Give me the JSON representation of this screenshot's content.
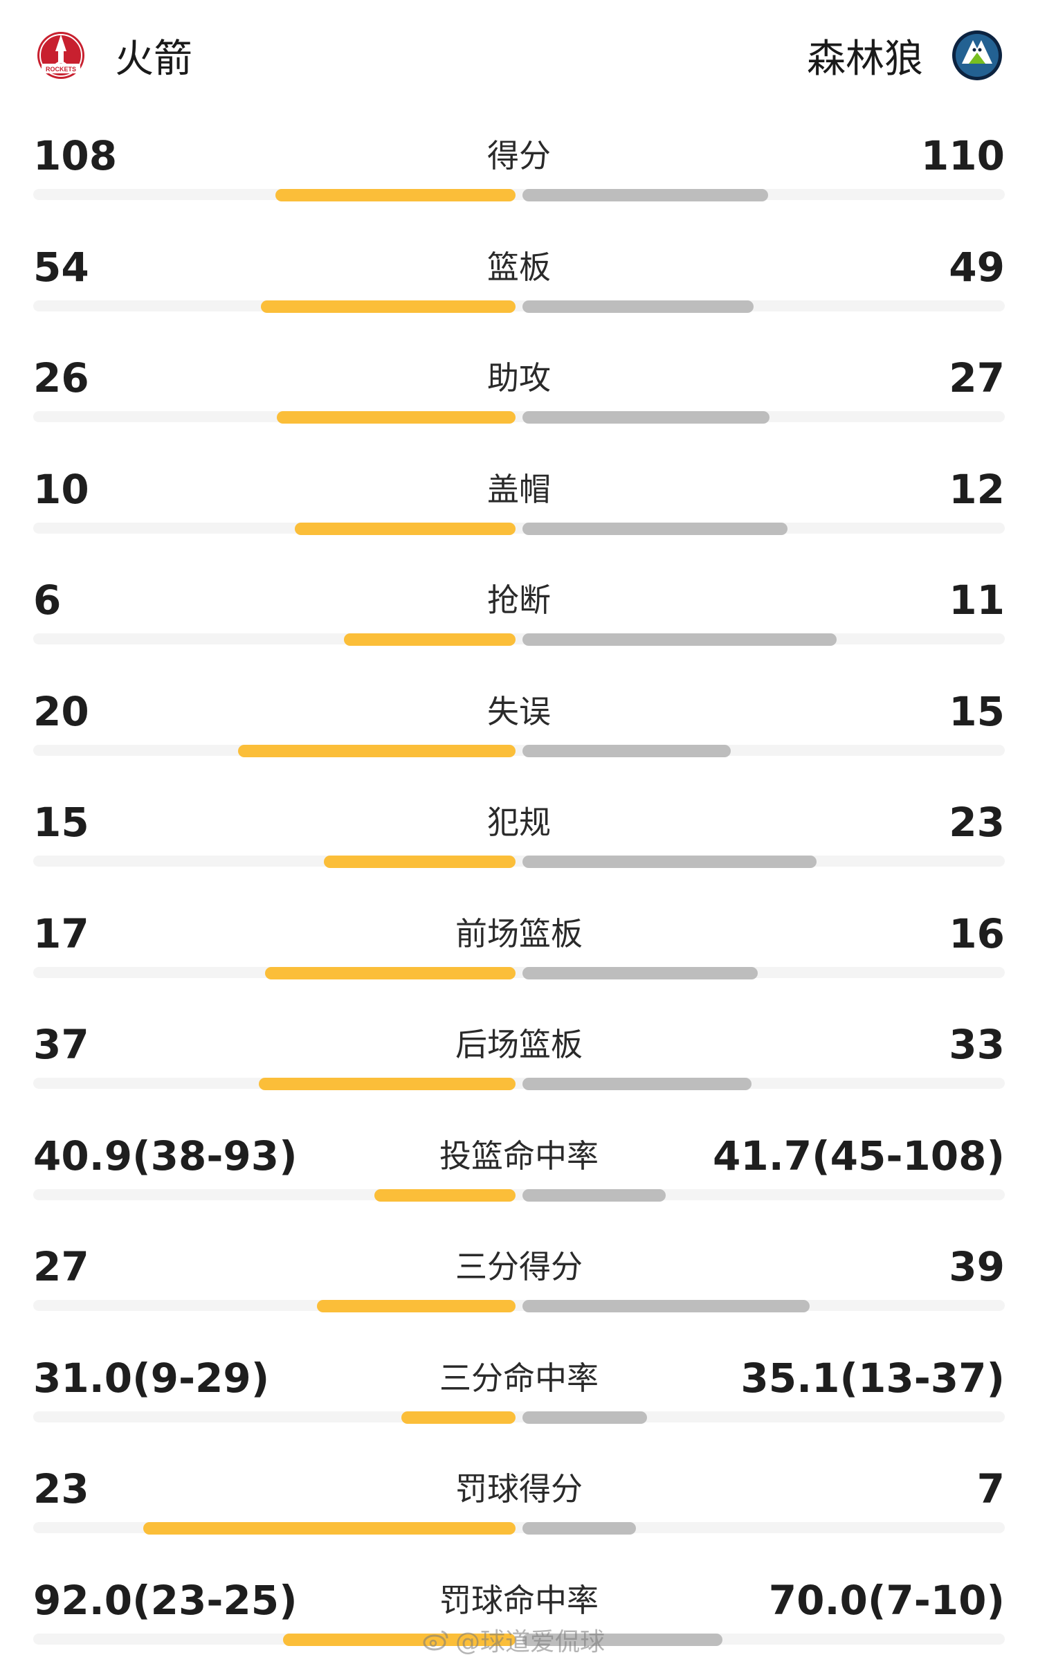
{
  "header": {
    "home_team": "火箭",
    "away_team": "森林狼",
    "home_logo_text": "ROCKETS"
  },
  "colors": {
    "home_bar": "#fbbe39",
    "away_bar": "#bdbdbd",
    "track": "#f4f4f4"
  },
  "stats": [
    {
      "label": "得分",
      "home": "108",
      "away": "110",
      "home_share": 0.495,
      "away_share": 0.505
    },
    {
      "label": "篮板",
      "home": "54",
      "away": "49",
      "home_share": 0.524,
      "away_share": 0.476
    },
    {
      "label": "助攻",
      "home": "26",
      "away": "27",
      "home_share": 0.491,
      "away_share": 0.509
    },
    {
      "label": "盖帽",
      "home": "10",
      "away": "12",
      "home_share": 0.455,
      "away_share": 0.545
    },
    {
      "label": "抢断",
      "home": "6",
      "away": "11",
      "home_share": 0.353,
      "away_share": 0.647
    },
    {
      "label": "失误",
      "home": "20",
      "away": "15",
      "home_share": 0.571,
      "away_share": 0.429
    },
    {
      "label": "犯规",
      "home": "15",
      "away": "23",
      "home_share": 0.395,
      "away_share": 0.605
    },
    {
      "label": "前场篮板",
      "home": "17",
      "away": "16",
      "home_share": 0.515,
      "away_share": 0.485
    },
    {
      "label": "后场篮板",
      "home": "37",
      "away": "33",
      "home_share": 0.529,
      "away_share": 0.471
    },
    {
      "label": "投篮命中率",
      "home": "40.9(38-93)",
      "away": "41.7(45-108)",
      "home_share": 0.29,
      "away_share": 0.295
    },
    {
      "label": "三分得分",
      "home": "27",
      "away": "39",
      "home_share": 0.409,
      "away_share": 0.591
    },
    {
      "label": "三分命中率",
      "home": "31.0(9-29)",
      "away": "35.1(13-37)",
      "home_share": 0.235,
      "away_share": 0.257
    },
    {
      "label": "罚球得分",
      "home": "23",
      "away": "7",
      "home_share": 0.767,
      "away_share": 0.233
    },
    {
      "label": "罚球命中率",
      "home": "92.0(23-25)",
      "away": "70.0(7-10)",
      "home_share": 0.479,
      "away_share": 0.412
    }
  ],
  "watermark": {
    "text": "@球道爱侃球",
    "icon": "weibo-icon"
  }
}
